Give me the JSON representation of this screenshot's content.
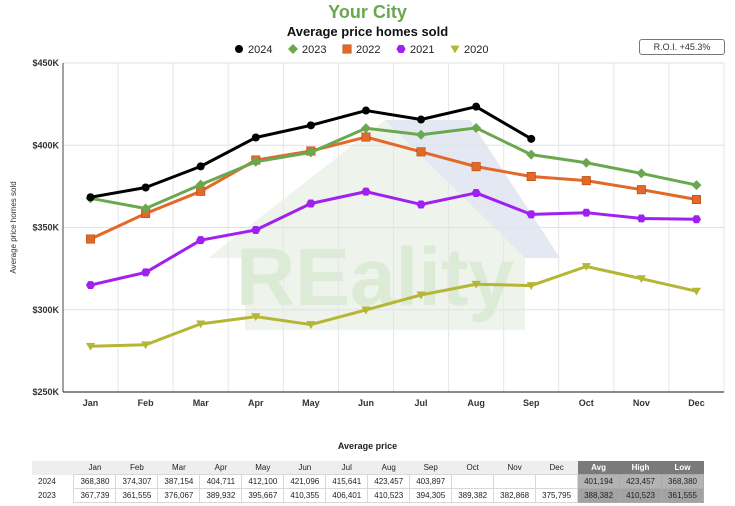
{
  "chart_data": {
    "type": "line",
    "title": "Your City",
    "subtitle": "Average price homes sold",
    "ylabel": "Average price homes sold",
    "xlabel": "",
    "categories": [
      "Jan",
      "Feb",
      "Mar",
      "Apr",
      "May",
      "Jun",
      "Jul",
      "Aug",
      "Sep",
      "Oct",
      "Nov",
      "Dec"
    ],
    "ylim": [
      250000,
      450000
    ],
    "yticks": [
      250000,
      300000,
      350000,
      400000,
      450000
    ],
    "ytick_labels": [
      "$250K",
      "$300K",
      "$350K",
      "$400K",
      "$450K"
    ],
    "grid": true,
    "legend_position": "top",
    "series": [
      {
        "name": "2024",
        "color": "#000000",
        "marker": "circle",
        "values": [
          368380,
          374307,
          387154,
          404711,
          412100,
          421096,
          415641,
          423457,
          403897,
          null,
          null,
          null
        ]
      },
      {
        "name": "2023",
        "color": "#6aa84f",
        "marker": "diamond",
        "values": [
          367739,
          361555,
          376067,
          389932,
          395667,
          410355,
          406401,
          410523,
          394305,
          389382,
          382868,
          375795
        ]
      },
      {
        "name": "2022",
        "color": "#e2692a",
        "marker": "square",
        "values": [
          343000,
          358500,
          372000,
          391000,
          396500,
          405000,
          396000,
          387000,
          381000,
          378500,
          373000,
          367000
        ]
      },
      {
        "name": "2021",
        "color": "#a020f0",
        "marker": "hexagon",
        "values": [
          315000,
          322700,
          342300,
          348500,
          364600,
          371800,
          364000,
          371000,
          358000,
          359000,
          355500,
          355000
        ]
      },
      {
        "name": "2020",
        "color": "#b5b536",
        "marker": "triangle-down",
        "values": [
          277800,
          278700,
          291400,
          295800,
          291000,
          299900,
          309000,
          315500,
          314700,
          326300,
          318900,
          311300
        ]
      }
    ]
  },
  "header": {
    "roi_label": "R.O.I. +45.3%"
  },
  "watermark": {
    "text": "REality"
  },
  "table": {
    "title": "Average price",
    "columns": [
      "",
      "Jan",
      "Feb",
      "Mar",
      "Apr",
      "May",
      "Jun",
      "Jul",
      "Aug",
      "Sep",
      "Oct",
      "Nov",
      "Dec",
      "Avg",
      "High",
      "Low"
    ],
    "rows": [
      [
        "2024",
        "368,380",
        "374,307",
        "387,154",
        "404,711",
        "412,100",
        "421,096",
        "415,641",
        "423,457",
        "403,897",
        "",
        "",
        "",
        "401,194",
        "423,457",
        "368,380"
      ],
      [
        "2023",
        "367,739",
        "361,555",
        "376,067",
        "389,932",
        "395,667",
        "410,355",
        "406,401",
        "410,523",
        "394,305",
        "389,382",
        "382,868",
        "375,795",
        "388,382",
        "410,523",
        "361,555"
      ]
    ]
  }
}
